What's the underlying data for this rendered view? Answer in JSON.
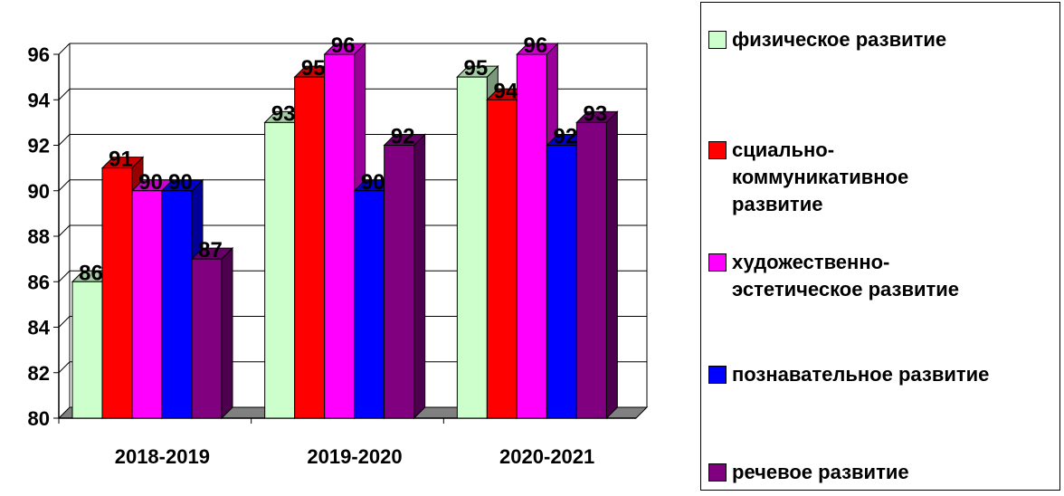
{
  "chart_data": {
    "type": "bar",
    "categories": [
      "2018-2019",
      "2019-2020",
      "2020-2021"
    ],
    "series": [
      {
        "name": "физическое развитие",
        "color": "#ccffcc",
        "values": [
          86,
          93,
          95
        ]
      },
      {
        "name": "сциально-коммуникативное развитие",
        "color": "#ff0000",
        "values": [
          91,
          95,
          94
        ]
      },
      {
        "name": "художественно-эстетическое развитие",
        "color": "#ff00ff",
        "values": [
          90,
          96,
          96
        ]
      },
      {
        "name": "познавательное развитие",
        "color": "#0000ff",
        "values": [
          90,
          90,
          92
        ]
      },
      {
        "name": "речевое развитие",
        "color": "#800080",
        "values": [
          87,
          92,
          93
        ]
      }
    ],
    "ylim": [
      80,
      96
    ],
    "yticks": [
      "80",
      "82",
      "84",
      "86",
      "88",
      "90",
      "92",
      "94",
      "96"
    ],
    "data_labels": [
      [
        "86",
        "93",
        "95"
      ],
      [
        "91",
        "95",
        "94"
      ],
      [
        "90",
        "96",
        "96"
      ],
      [
        "90",
        "90",
        "92"
      ],
      [
        "87",
        "92",
        "93"
      ]
    ],
    "grid": true,
    "legend_position": "right"
  }
}
